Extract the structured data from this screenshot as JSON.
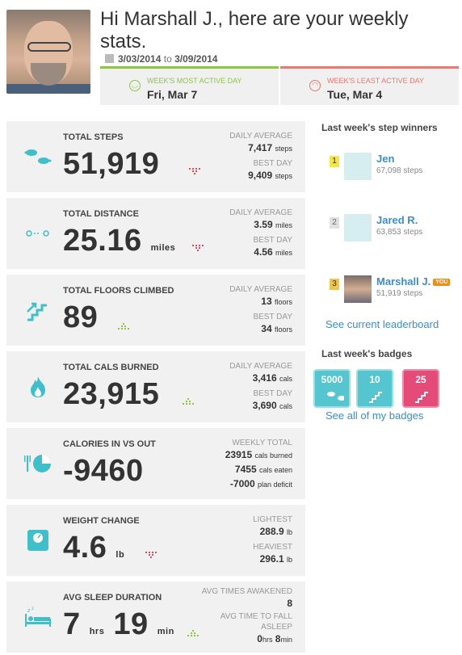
{
  "header": {
    "greeting": "Hi Marshall J., here are your weekly stats.",
    "date_start": "3/03/2014",
    "date_to": "to",
    "date_end": "3/09/2014",
    "most_active_label": "WEEK'S MOST ACTIVE DAY",
    "most_active_value": "Fri, Mar 7",
    "least_active_label": "WEEK'S LEAST ACTIVE DAY",
    "least_active_value": "Tue, Mar 4"
  },
  "cards": {
    "steps": {
      "title": "TOTAL STEPS",
      "value": "51,919",
      "unit": "",
      "l1": "DAILY AVERAGE",
      "v1": "7,417",
      "u1": "steps",
      "l2": "BEST DAY",
      "v2": "9,409",
      "u2": "steps",
      "trend": "down"
    },
    "distance": {
      "title": "TOTAL DISTANCE",
      "value": "25.16",
      "unit": "miles",
      "l1": "DAILY AVERAGE",
      "v1": "3.59",
      "u1": "miles",
      "l2": "BEST DAY",
      "v2": "4.56",
      "u2": "miles",
      "trend": "down"
    },
    "floors": {
      "title": "TOTAL FLOORS CLIMBED",
      "value": "89",
      "unit": "",
      "l1": "DAILY AVERAGE",
      "v1": "13",
      "u1": "floors",
      "l2": "BEST DAY",
      "v2": "34",
      "u2": "floors",
      "trend": "up"
    },
    "cals": {
      "title": "TOTAL CALS BURNED",
      "value": "23,915",
      "unit": "",
      "l1": "DAILY AVERAGE",
      "v1": "3,416",
      "u1": "cals",
      "l2": "BEST DAY",
      "v2": "3,690",
      "u2": "cals",
      "trend": "up"
    },
    "calories_in_out": {
      "title": "CALORIES IN VS OUT",
      "value": "-9460",
      "l1": "WEEKLY TOTAL",
      "v1": "23915",
      "u1": "cals burned",
      "v2": "7455",
      "u2": "cals eaten",
      "v3": "-7000",
      "u3": "plan deficit"
    },
    "weight": {
      "title": "WEIGHT CHANGE",
      "value": "4.6",
      "unit": "lb",
      "l1": "LIGHTEST",
      "v1": "288.9",
      "u1": "lb",
      "l2": "HEAVIEST",
      "v2": "296.1",
      "u2": "lb",
      "trend": "down"
    },
    "sleep": {
      "title": "AVG SLEEP DURATION",
      "hours": "7",
      "hours_unit": "hrs",
      "mins": "19",
      "mins_unit": "min",
      "l1": "AVG TIMES AWAKENED",
      "v1": "8",
      "l2a": "AVG TIME TO FALL",
      "l2b": "ASLEEP",
      "v2h": "0",
      "u2h": "hrs",
      "v2m": "8",
      "u2m": "min",
      "trend": "up"
    }
  },
  "sidebar": {
    "winners_title": "Last week's step winners",
    "winners": [
      {
        "rank": "1",
        "name": "Jen",
        "steps": "67,098 steps"
      },
      {
        "rank": "2",
        "name": "Jared R.",
        "steps": "63,853 steps"
      },
      {
        "rank": "3",
        "name": "Marshall J.",
        "steps": "51,919 steps",
        "you": "YOU"
      }
    ],
    "leaderboard_link": "See current leaderboard",
    "badges_title": "Last week's badges",
    "badges": [
      {
        "label": "5000",
        "icon": "steps-icon"
      },
      {
        "label": "10",
        "icon": "stairs-icon"
      },
      {
        "label": "25",
        "icon": "stairs-icon"
      }
    ],
    "badges_link": "See all of my badges"
  },
  "colors": {
    "teal": "#3fbfca",
    "green": "#8dc63f",
    "red": "#f0766e",
    "link": "#3b8ec6"
  }
}
